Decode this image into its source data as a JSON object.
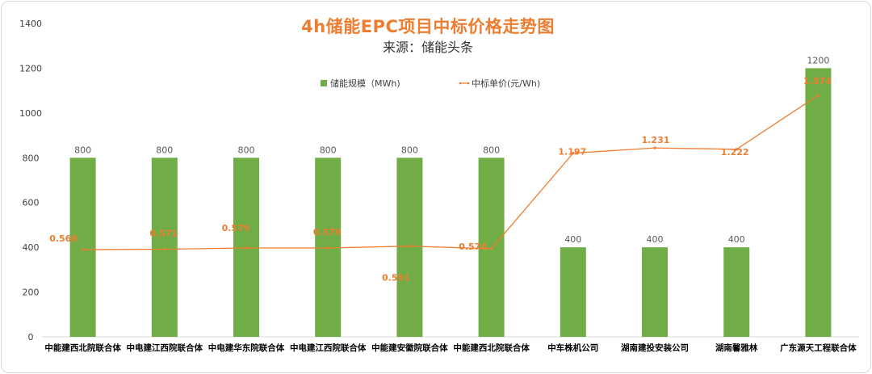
{
  "chart_data": {
    "type": "bar",
    "title": "4h储能EPC项目中标价格走势图",
    "subtitle": "来源：储能头条",
    "categories": [
      "中能建西北院联合体",
      "中电建江西院联合体",
      "中电建华东院联合体",
      "中电建江西院联合体",
      "中能建安徽院联合体",
      "中能建西北院联合体",
      "中车株机公司",
      "湖南建投安装公司",
      "湖南馨雅林",
      "广东源天工程联合体"
    ],
    "series": [
      {
        "name": "储能规模（MWh)",
        "type": "bar",
        "color": "#70ad47",
        "values": [
          800,
          800,
          800,
          800,
          800,
          800,
          400,
          400,
          400,
          1200
        ],
        "labels": [
          "800",
          "800",
          "800",
          "800",
          "800",
          "800",
          "400",
          "400",
          "400",
          "1200"
        ]
      },
      {
        "name": "中标单价(元/Wh)",
        "type": "line",
        "color": "#ed7d31",
        "values": [
          0.568,
          0.571,
          0.579,
          0.579,
          0.591,
          0.574,
          1.197,
          1.231,
          1.222,
          1.574
        ],
        "labels": [
          "0.568",
          "0.571",
          "0.579",
          "0.579",
          "0.591",
          "0.574",
          "1.197",
          "1.231",
          "1.222",
          "1.574"
        ]
      }
    ],
    "ylim": [
      0,
      1400
    ],
    "yticks": [
      "0",
      "200",
      "400",
      "600",
      "800",
      "1000",
      "1200",
      "1400"
    ],
    "grid": false,
    "legend": "top-center"
  }
}
